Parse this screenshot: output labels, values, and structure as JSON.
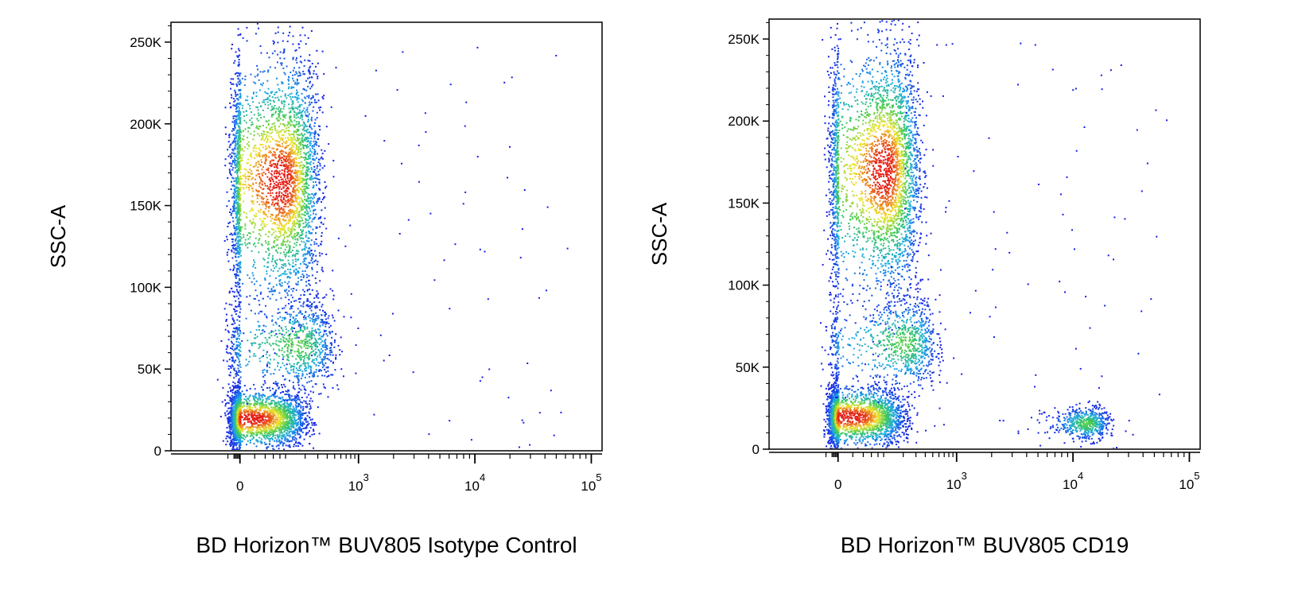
{
  "chart_data": [
    {
      "type": "scatter",
      "xlabel": "BD Horizon™ BUV805 Isotype Control",
      "ylabel": "SSC-A",
      "x_scale": "biexponential",
      "xlim": [
        -200,
        100000
      ],
      "ylim": [
        0,
        262144
      ],
      "grid": false,
      "y_ticks": [
        {
          "value": 0,
          "label": "0"
        },
        {
          "value": 50000,
          "label": "50K"
        },
        {
          "value": 100000,
          "label": "100K"
        },
        {
          "value": 150000,
          "label": "150K"
        },
        {
          "value": 200000,
          "label": "200K"
        },
        {
          "value": 250000,
          "label": "250K"
        }
      ],
      "x_ticks": [
        {
          "value": 0,
          "label": "0",
          "exp": ""
        },
        {
          "value": 1000,
          "label": "10",
          "exp": "3"
        },
        {
          "value": 10000,
          "label": "10",
          "exp": "4"
        },
        {
          "value": 100000,
          "label": "10",
          "exp": "5"
        }
      ],
      "populations": [
        {
          "name": "",
          "x_center": 10,
          "x_spread": 90,
          "y_center": 20000,
          "y_spread": 9000,
          "count": 2600
        },
        {
          "name": "",
          "x_center": 80,
          "x_spread": 110,
          "y_center": 165000,
          "y_spread": 38000,
          "count": 3400
        },
        {
          "name": "",
          "x_center": 150,
          "x_spread": 160,
          "y_center": 65000,
          "y_spread": 14000,
          "count": 900
        }
      ]
    },
    {
      "type": "scatter",
      "xlabel": "BD Horizon™ BUV805 CD19",
      "ylabel": "SSC-A",
      "x_scale": "biexponential",
      "xlim": [
        -200,
        100000
      ],
      "ylim": [
        0,
        262144
      ],
      "grid": false,
      "y_ticks": [
        {
          "value": 0,
          "label": "0"
        },
        {
          "value": 50000,
          "label": "50K"
        },
        {
          "value": 100000,
          "label": "100K"
        },
        {
          "value": 150000,
          "label": "150K"
        },
        {
          "value": 200000,
          "label": "200K"
        },
        {
          "value": 250000,
          "label": "250K"
        }
      ],
      "x_ticks": [
        {
          "value": 0,
          "label": "0",
          "exp": ""
        },
        {
          "value": 1000,
          "label": "10",
          "exp": "3"
        },
        {
          "value": 10000,
          "label": "10",
          "exp": "4"
        },
        {
          "value": 100000,
          "label": "10",
          "exp": "5"
        }
      ],
      "populations": [
        {
          "name": "",
          "x_center": 10,
          "x_spread": 90,
          "y_center": 20000,
          "y_spread": 9000,
          "count": 2500
        },
        {
          "name": "",
          "x_center": 100,
          "x_spread": 110,
          "y_center": 170000,
          "y_spread": 38000,
          "count": 3300
        },
        {
          "name": "",
          "x_center": 200,
          "x_spread": 170,
          "y_center": 65000,
          "y_spread": 14000,
          "count": 900
        },
        {
          "name": "",
          "x_center": 13000,
          "x_spread": 3500,
          "y_center": 16000,
          "y_spread": 5000,
          "count": 550
        }
      ]
    }
  ]
}
